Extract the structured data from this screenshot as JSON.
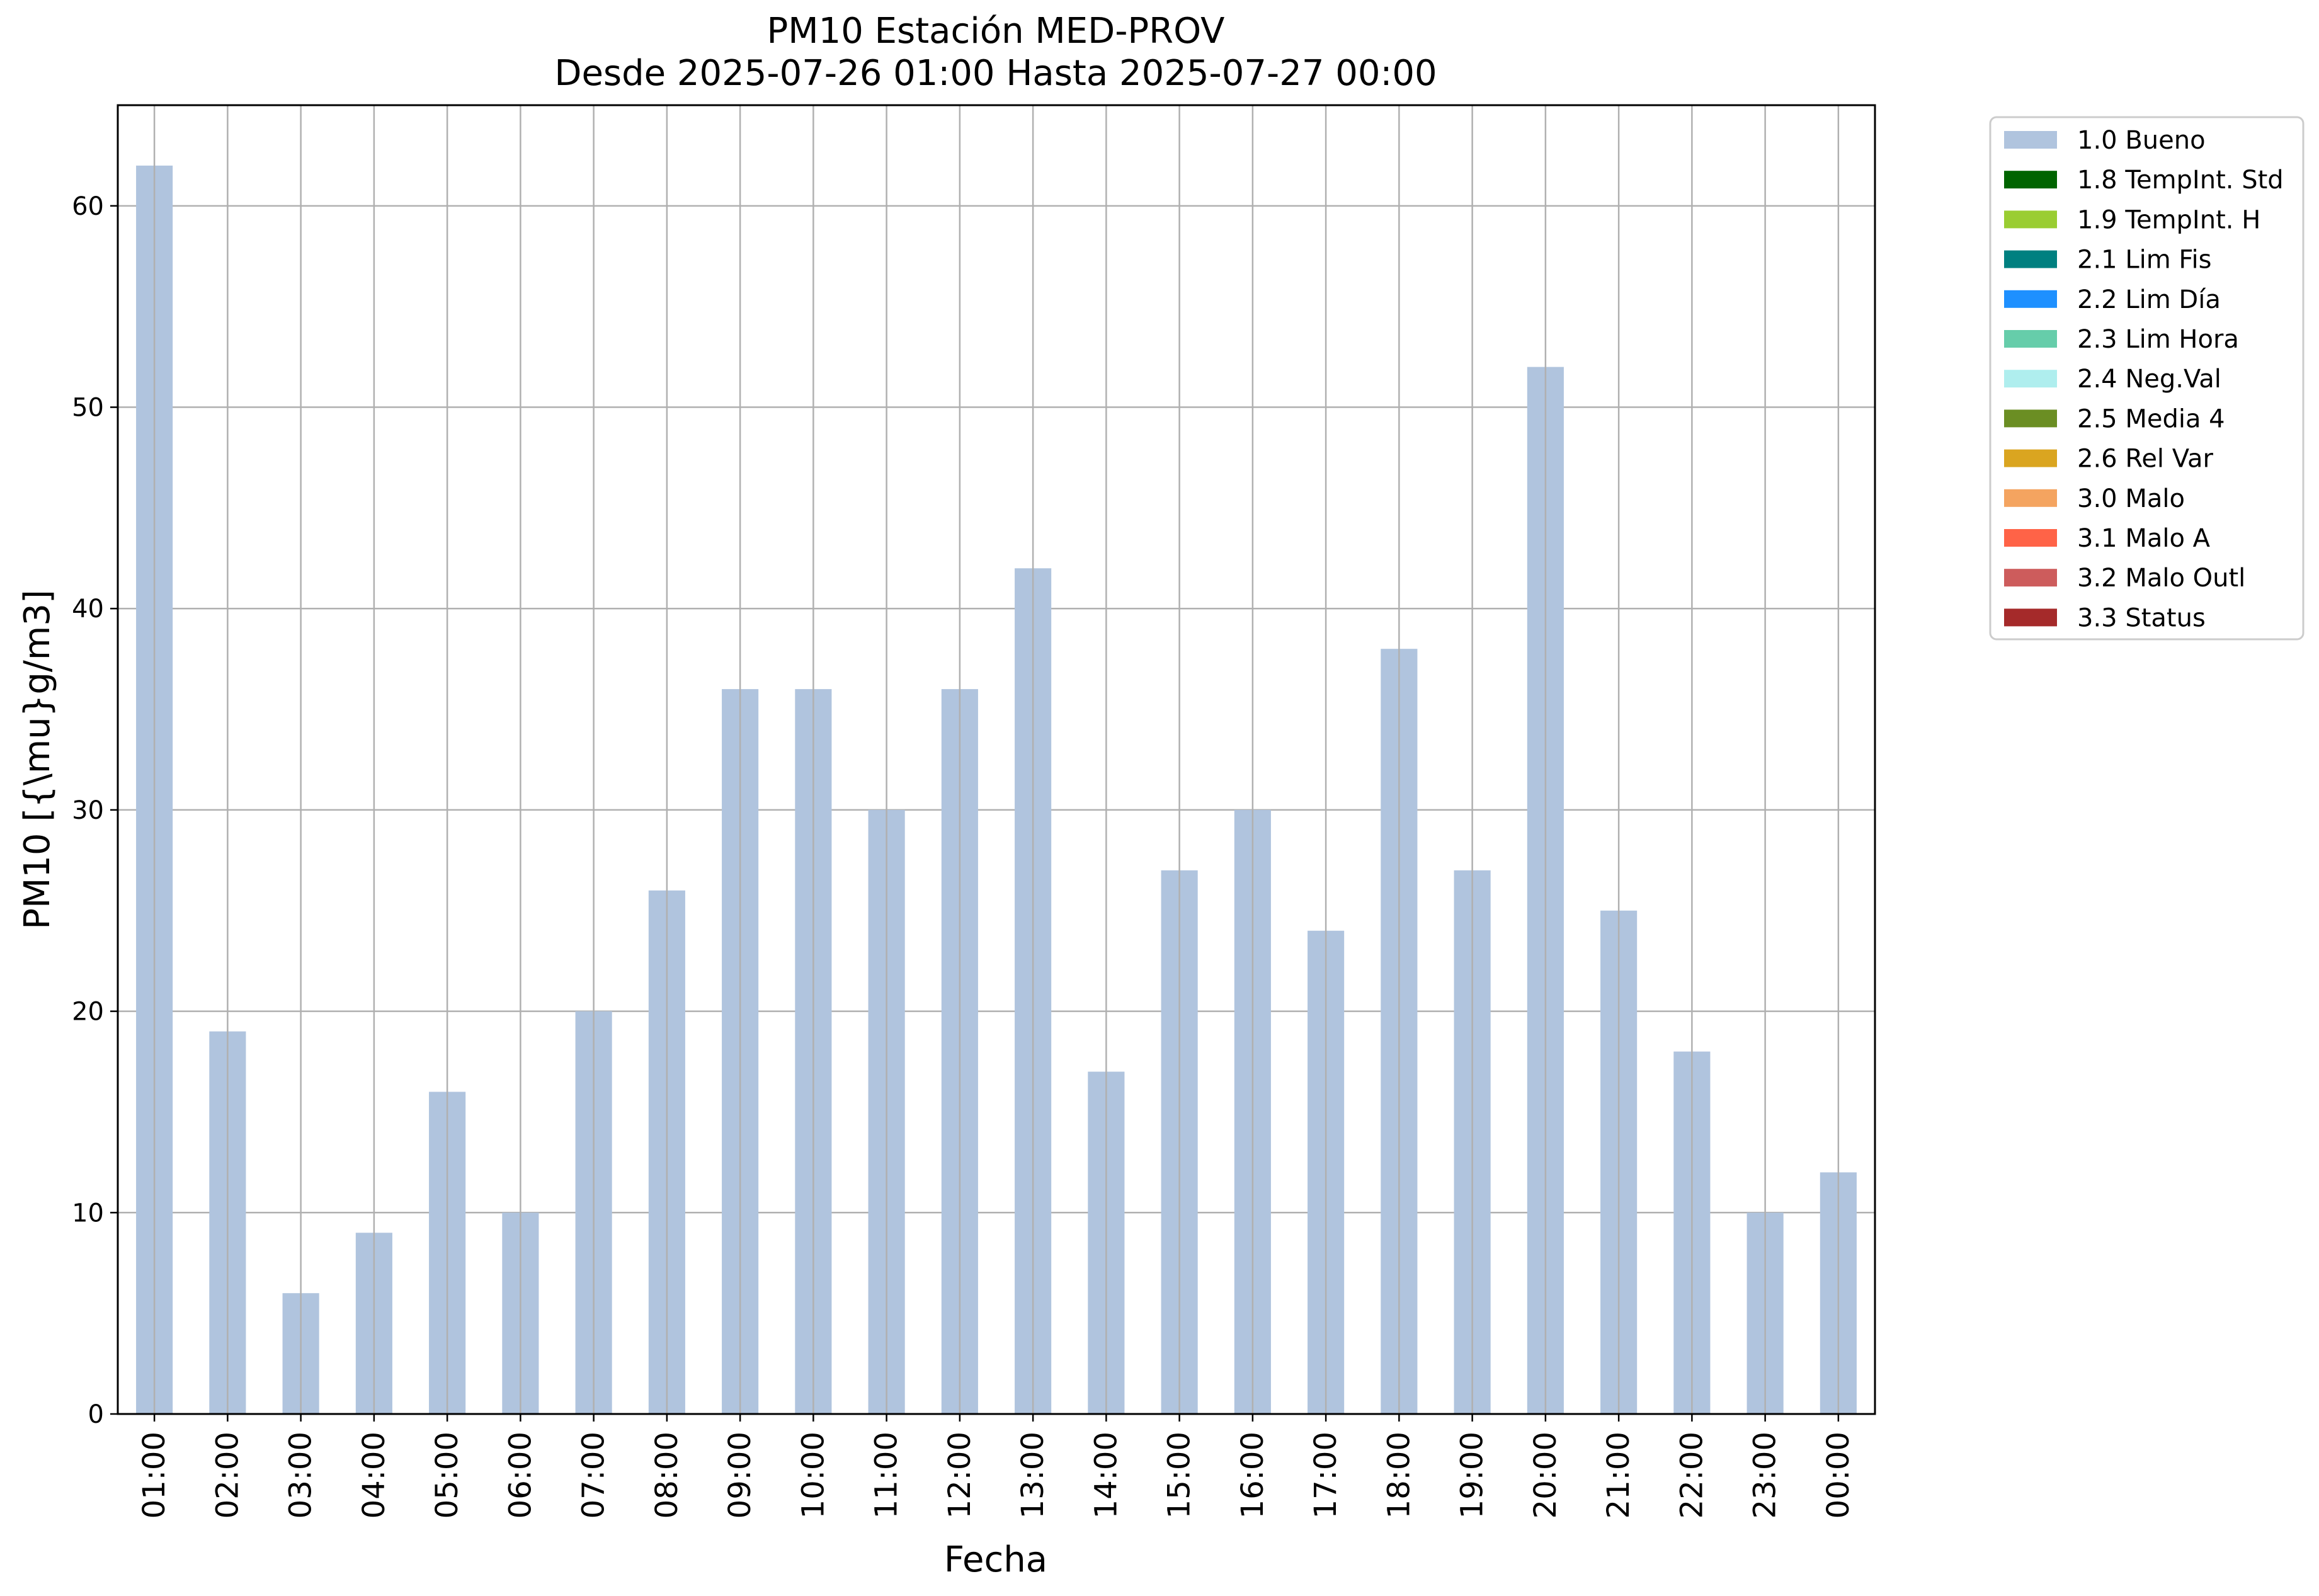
{
  "chart_data": {
    "type": "bar",
    "title": "PM10 Estación MED-PROV",
    "subtitle": "Desde 2025-07-26 01:00 Hasta 2025-07-27 00:00",
    "xlabel": "Fecha",
    "ylabel": "PM10 [{\\mu}g/m3]",
    "ylim": [
      0,
      65
    ],
    "yticks": [
      0,
      10,
      20,
      30,
      40,
      50,
      60
    ],
    "grid": true,
    "legend_position": "outside-right-top",
    "categories": [
      "01:00",
      "02:00",
      "03:00",
      "04:00",
      "05:00",
      "06:00",
      "07:00",
      "08:00",
      "09:00",
      "10:00",
      "11:00",
      "12:00",
      "13:00",
      "14:00",
      "15:00",
      "16:00",
      "17:00",
      "18:00",
      "19:00",
      "20:00",
      "21:00",
      "22:00",
      "23:00",
      "00:00"
    ],
    "series": [
      {
        "name": "1.0 Bueno",
        "color": "#b0c4de",
        "values": [
          62,
          19,
          6,
          9,
          16,
          10,
          20,
          26,
          36,
          36,
          30,
          36,
          42,
          17,
          27,
          30,
          24,
          38,
          27,
          52,
          25,
          18,
          10,
          12
        ]
      }
    ],
    "legend": [
      {
        "label": "1.0 Bueno",
        "color": "#b0c4de"
      },
      {
        "label": "1.8 TempInt. Std",
        "color": "#006400"
      },
      {
        "label": "1.9 TempInt. H",
        "color": "#9acd32"
      },
      {
        "label": "2.1 Lim Fis",
        "color": "#008080"
      },
      {
        "label": "2.2 Lim Día",
        "color": "#1e90ff"
      },
      {
        "label": "2.3 Lim Hora",
        "color": "#66cdaa"
      },
      {
        "label": "2.4 Neg.Val",
        "color": "#afeeee"
      },
      {
        "label": "2.5 Media 4",
        "color": "#6b8e23"
      },
      {
        "label": "2.6 Rel Var",
        "color": "#daa520"
      },
      {
        "label": "3.0 Malo",
        "color": "#f4a460"
      },
      {
        "label": "3.1 Malo A",
        "color": "#ff6347"
      },
      {
        "label": "3.2 Malo Outl",
        "color": "#cd5c5c"
      },
      {
        "label": "3.3 Status",
        "color": "#a52a2a"
      }
    ]
  }
}
